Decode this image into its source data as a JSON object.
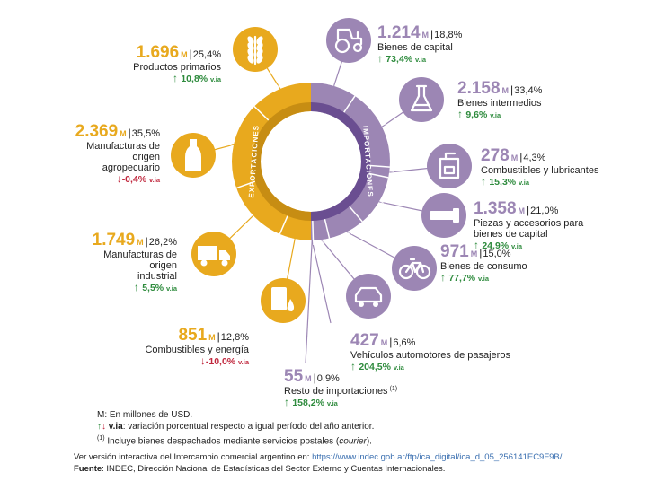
{
  "colors": {
    "exports": "#e8a91e",
    "exports_dark": "#c78d13",
    "imports": "#9c86b4",
    "imports_dark": "#6a4e91",
    "up": "#2e8b3d",
    "down": "#c0273d"
  },
  "ring": {
    "exports_label": "EXPORTACIONES",
    "imports_label": "IMPORTACIONES"
  },
  "chart_data": {
    "type": "donut",
    "unit": "M",
    "variation_suffix": "v.ia",
    "series": [
      {
        "name": "EXPORTACIONES",
        "items": [
          {
            "label": "Productos primarios",
            "value": "1.696",
            "share": "25,4%",
            "variation": "10,8%",
            "direction": "up",
            "icon": "wheat-icon"
          },
          {
            "label": "Manufacturas de origen agropecuario",
            "value": "2.369",
            "share": "35,5%",
            "variation": "-0,4%",
            "direction": "down",
            "icon": "bottle-icon"
          },
          {
            "label": "Manufacturas de origen industrial",
            "value": "1.749",
            "share": "26,2%",
            "variation": "5,5%",
            "direction": "up",
            "icon": "truck-icon"
          },
          {
            "label": "Combustibles y energía",
            "value": "851",
            "share": "12,8%",
            "variation": "-10,0%",
            "direction": "down",
            "icon": "oil-barrel-icon"
          }
        ]
      },
      {
        "name": "IMPORTACIONES",
        "items": [
          {
            "label": "Bienes de capital",
            "value": "1.214",
            "share": "18,8%",
            "variation": "73,4%",
            "direction": "up",
            "icon": "tractor-icon"
          },
          {
            "label": "Bienes intermedios",
            "value": "2.158",
            "share": "33,4%",
            "variation": "9,6%",
            "direction": "up",
            "icon": "flask-icon"
          },
          {
            "label": "Combustibles y lubricantes",
            "value": "278",
            "share": "4,3%",
            "variation": "15,3%",
            "direction": "up",
            "icon": "jerrycan-icon"
          },
          {
            "label": "Piezas y accesorios para bienes de capital",
            "value": "1.358",
            "share": "21,0%",
            "variation": "24,9%",
            "direction": "up",
            "icon": "bolt-icon"
          },
          {
            "label": "Bienes de consumo",
            "value": "971",
            "share": "15,0%",
            "variation": "77,7%",
            "direction": "up",
            "icon": "bicycle-icon"
          },
          {
            "label": "Vehículos automotores de pasajeros",
            "value": "427",
            "share": "6,6%",
            "variation": "204,5%",
            "direction": "up",
            "icon": "car-icon"
          },
          {
            "label": "Resto de importaciones",
            "label_note": "(1)",
            "value": "55",
            "share": "0,9%",
            "variation": "158,2%",
            "direction": "up",
            "icon": ""
          }
        ]
      }
    ]
  },
  "notes": {
    "unit_note": "M: En millones de USD.",
    "via_term": "v.ia",
    "via_text": ": variación porcentual respecto a igual período del año anterior.",
    "footnote_mark": "(1)",
    "footnote_text_a": " Incluye bienes despachados mediante servicios postales (",
    "footnote_text_b": "courier",
    "footnote_text_c": ")."
  },
  "footer": {
    "link_intro": "Ver versión interactiva del Intercambio comercial argentino en: ",
    "link_text": "https://www.indec.gob.ar/ftp/ica_digital/ica_d_05_256141EC9F9B/",
    "source_label": "Fuente",
    "source_text": ": INDEC, Dirección Nacional de Estadísticas del Sector Externo y Cuentas Internacionales."
  }
}
